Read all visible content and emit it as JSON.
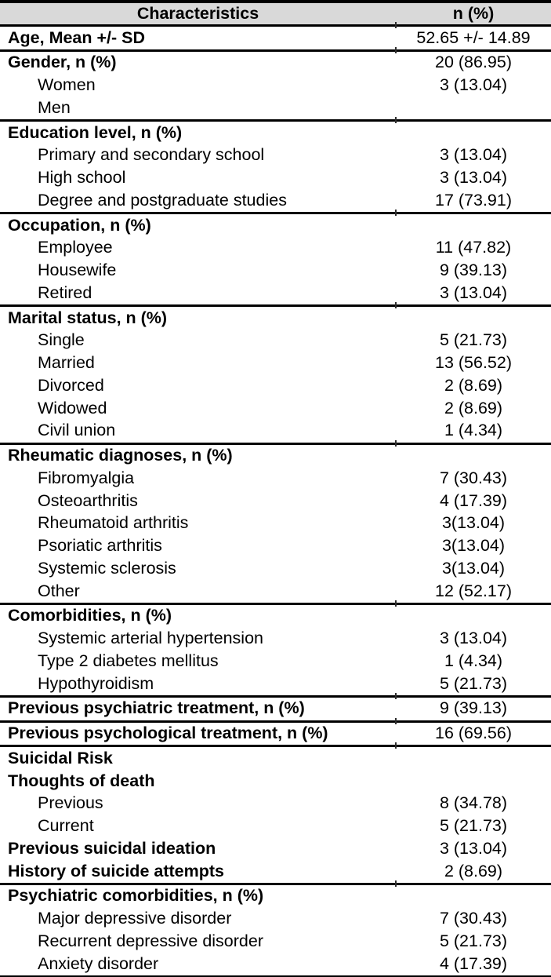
{
  "table": {
    "header": {
      "col1": "Characteristics",
      "col2": "n (%)"
    },
    "styles": {
      "header_bg": "#d9d9d9",
      "border_color": "#000000",
      "text_color": "#000000"
    },
    "sections": [
      {
        "rows": [
          {
            "label": "Age, Mean +/- SD",
            "bold": true,
            "indent": false,
            "value": "52.65 +/- 14.89"
          }
        ]
      },
      {
        "rows": [
          {
            "label": "Gender, n (%)",
            "bold": true,
            "indent": false,
            "value": "20 (86.95)"
          },
          {
            "label": "Women",
            "bold": false,
            "indent": true,
            "value": "3 (13.04)"
          },
          {
            "label": "Men",
            "bold": false,
            "indent": true,
            "value": ""
          }
        ]
      },
      {
        "rows": [
          {
            "label": "Education level, n (%)",
            "bold": true,
            "indent": false,
            "value": ""
          },
          {
            "label": "Primary and secondary school",
            "bold": false,
            "indent": true,
            "value": "3 (13.04)"
          },
          {
            "label": "High school",
            "bold": false,
            "indent": true,
            "value": "3 (13.04)"
          },
          {
            "label": "Degree and postgraduate studies",
            "bold": false,
            "indent": true,
            "value": "17 (73.91)"
          }
        ]
      },
      {
        "rows": [
          {
            "label": "Occupation, n (%)",
            "bold": true,
            "indent": false,
            "value": ""
          },
          {
            "label": "Employee",
            "bold": false,
            "indent": true,
            "value": "11 (47.82)"
          },
          {
            "label": "Housewife",
            "bold": false,
            "indent": true,
            "value": "9 (39.13)"
          },
          {
            "label": "Retired",
            "bold": false,
            "indent": true,
            "value": "3 (13.04)"
          }
        ]
      },
      {
        "rows": [
          {
            "label": "Marital status, n (%)",
            "bold": true,
            "indent": false,
            "value": ""
          },
          {
            "label": "Single",
            "bold": false,
            "indent": true,
            "value": "5 (21.73)"
          },
          {
            "label": "Married",
            "bold": false,
            "indent": true,
            "value": "13 (56.52)"
          },
          {
            "label": "Divorced",
            "bold": false,
            "indent": true,
            "value": "2 (8.69)"
          },
          {
            "label": "Widowed",
            "bold": false,
            "indent": true,
            "value": "2 (8.69)"
          },
          {
            "label": "Civil union",
            "bold": false,
            "indent": true,
            "value": "1 (4.34)"
          }
        ]
      },
      {
        "rows": [
          {
            "label": "Rheumatic diagnoses, n (%)",
            "bold": true,
            "indent": false,
            "value": ""
          },
          {
            "label": "Fibromyalgia",
            "bold": false,
            "indent": true,
            "value": "7 (30.43)"
          },
          {
            "label": "Osteoarthritis",
            "bold": false,
            "indent": true,
            "value": "4 (17.39)"
          },
          {
            "label": "Rheumatoid arthritis",
            "bold": false,
            "indent": true,
            "value": "3(13.04)"
          },
          {
            "label": "Psoriatic arthritis",
            "bold": false,
            "indent": true,
            "value": "3(13.04)"
          },
          {
            "label": "Systemic sclerosis",
            "bold": false,
            "indent": true,
            "value": "3(13.04)"
          },
          {
            "label": "Other",
            "bold": false,
            "indent": true,
            "value": "12 (52.17)"
          }
        ]
      },
      {
        "rows": [
          {
            "label": "Comorbidities, n (%)",
            "bold": true,
            "indent": false,
            "value": ""
          },
          {
            "label": "Systemic arterial hypertension",
            "bold": false,
            "indent": true,
            "value": "3 (13.04)"
          },
          {
            "label": "Type 2 diabetes mellitus",
            "bold": false,
            "indent": true,
            "value": "1 (4.34)"
          },
          {
            "label": "Hypothyroidism",
            "bold": false,
            "indent": true,
            "value": "5 (21.73)"
          }
        ]
      },
      {
        "rows": [
          {
            "label": "Previous psychiatric treatment, n (%)",
            "bold": true,
            "indent": false,
            "value": "9 (39.13)"
          }
        ]
      },
      {
        "rows": [
          {
            "label": "Previous psychological treatment, n (%)",
            "bold": true,
            "indent": false,
            "value": "16 (69.56)"
          }
        ]
      },
      {
        "rows": [
          {
            "label": "Suicidal Risk",
            "bold": true,
            "indent": false,
            "value": ""
          },
          {
            "label": "Thoughts of death",
            "bold": true,
            "indent": false,
            "value": ""
          },
          {
            "label": "Previous",
            "bold": false,
            "indent": true,
            "value": "8 (34.78)"
          },
          {
            "label": "Current",
            "bold": false,
            "indent": true,
            "value": "5 (21.73)"
          },
          {
            "label": "Previous suicidal ideation",
            "bold": true,
            "indent": false,
            "value": "3 (13.04)"
          },
          {
            "label": "History of suicide attempts",
            "bold": true,
            "indent": false,
            "value": "2 (8.69)"
          }
        ]
      },
      {
        "rows": [
          {
            "label": "Psychiatric comorbidities, n (%)",
            "bold": true,
            "indent": false,
            "value": ""
          },
          {
            "label": "Major depressive disorder",
            "bold": false,
            "indent": true,
            "value": "7 (30.43)"
          },
          {
            "label": "Recurrent depressive disorder",
            "bold": false,
            "indent": true,
            "value": "5 (21.73)"
          },
          {
            "label": "Anxiety disorder",
            "bold": false,
            "indent": true,
            "value": "4 (17.39)"
          }
        ]
      }
    ]
  }
}
